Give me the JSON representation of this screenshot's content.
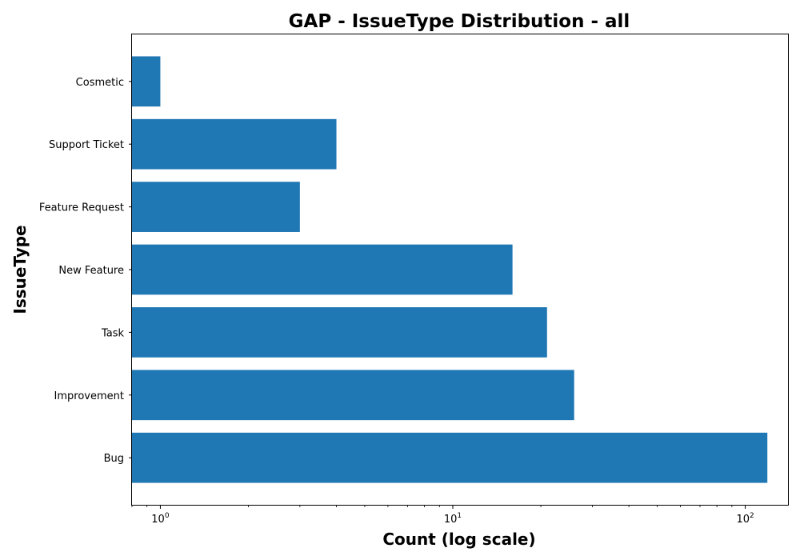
{
  "chart_data": {
    "type": "bar",
    "orientation": "horizontal",
    "title": "GAP - IssueType Distribution - all",
    "xlabel": "Count (log scale)",
    "ylabel": "IssueType",
    "xscale": "log",
    "xlim": [
      0.8,
      140
    ],
    "categories": [
      "Bug",
      "Improvement",
      "Task",
      "New Feature",
      "Feature Request",
      "Support Ticket",
      "Cosmetic"
    ],
    "values": [
      119,
      26,
      21,
      16,
      3,
      4,
      1
    ],
    "xticks": [
      {
        "base": "10",
        "exponent": "0",
        "value": 1
      },
      {
        "base": "10",
        "exponent": "1",
        "value": 10
      },
      {
        "base": "10",
        "exponent": "2",
        "value": 100
      }
    ],
    "bar_color": "#1f77b4",
    "grid": false,
    "legend": "none"
  }
}
